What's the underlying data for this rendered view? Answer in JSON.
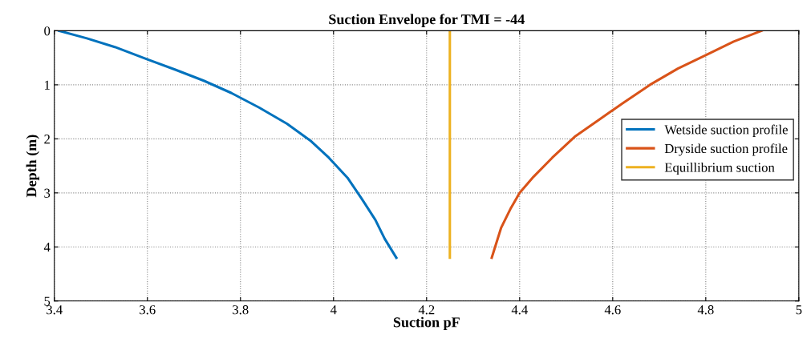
{
  "chart_data": {
    "type": "line",
    "title": "Suction Envelope for TMI = -44",
    "xlabel": "Suction pF",
    "ylabel": "Depth (m)",
    "xlim": [
      3.4,
      5
    ],
    "xticks": [
      3.4,
      3.6,
      3.8,
      4,
      4.2,
      4.4,
      4.6,
      4.8,
      5
    ],
    "ylim": [
      5,
      0
    ],
    "yticks": [
      0,
      1,
      2,
      3,
      4,
      5
    ],
    "grid": true,
    "legend": "right",
    "line_style": "solid",
    "marker": "none",
    "series": [
      {
        "name": "Wetside suction profile",
        "color": "#0072bd",
        "x": [
          3.41,
          3.47,
          3.53,
          3.6,
          3.66,
          3.72,
          3.78,
          3.84,
          3.9,
          3.95,
          3.99,
          4.03,
          4.06,
          4.09,
          4.11,
          4.135
        ],
        "values": [
          0,
          0.14,
          0.3,
          0.53,
          0.72,
          0.92,
          1.15,
          1.42,
          1.72,
          2.03,
          2.35,
          2.72,
          3.1,
          3.5,
          3.85,
          4.2
        ]
      },
      {
        "name": "Dryside suction profile",
        "color": "#d95319",
        "x": [
          4.92,
          4.86,
          4.8,
          4.74,
          4.68,
          4.62,
          4.57,
          4.52,
          4.47,
          4.43,
          4.4,
          4.38,
          4.36,
          4.34
        ],
        "values": [
          0,
          0.2,
          0.45,
          0.7,
          1.0,
          1.35,
          1.65,
          1.95,
          2.35,
          2.7,
          3.0,
          3.3,
          3.65,
          4.2
        ]
      },
      {
        "name": "Equillibrium suction",
        "color": "#edb120",
        "x": [
          4.25,
          4.25
        ],
        "values": [
          0,
          4.2
        ]
      }
    ]
  }
}
